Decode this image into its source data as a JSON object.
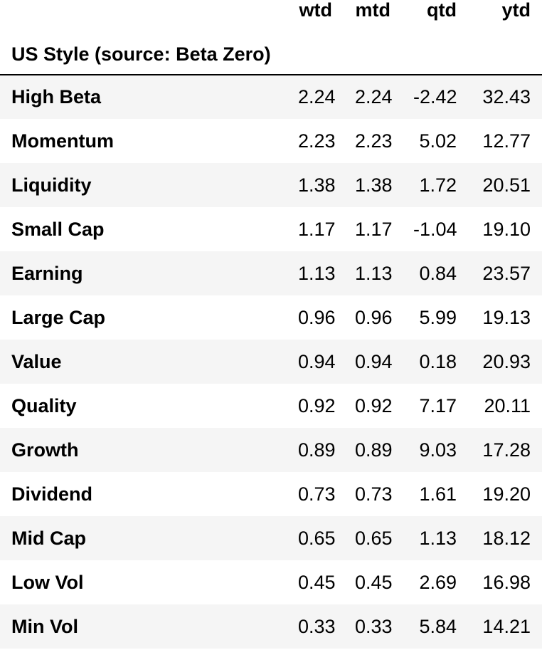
{
  "table": {
    "columns": [
      "wtd",
      "mtd",
      "qtd",
      "ytd"
    ],
    "index_name": "US Style (source: Beta Zero)",
    "rows": [
      {
        "label": "High Beta",
        "values": [
          "2.24",
          "2.24",
          "-2.42",
          "32.43"
        ]
      },
      {
        "label": "Momentum",
        "values": [
          "2.23",
          "2.23",
          "5.02",
          "12.77"
        ]
      },
      {
        "label": "Liquidity",
        "values": [
          "1.38",
          "1.38",
          "1.72",
          "20.51"
        ]
      },
      {
        "label": "Small Cap",
        "values": [
          "1.17",
          "1.17",
          "-1.04",
          "19.10"
        ]
      },
      {
        "label": "Earning",
        "values": [
          "1.13",
          "1.13",
          "0.84",
          "23.57"
        ]
      },
      {
        "label": "Large Cap",
        "values": [
          "0.96",
          "0.96",
          "5.99",
          "19.13"
        ]
      },
      {
        "label": "Value",
        "values": [
          "0.94",
          "0.94",
          "0.18",
          "20.93"
        ]
      },
      {
        "label": "Quality",
        "values": [
          "0.92",
          "0.92",
          "7.17",
          "20.11"
        ]
      },
      {
        "label": "Growth",
        "values": [
          "0.89",
          "0.89",
          "9.03",
          "17.28"
        ]
      },
      {
        "label": "Dividend",
        "values": [
          "0.73",
          "0.73",
          "1.61",
          "19.20"
        ]
      },
      {
        "label": "Mid Cap",
        "values": [
          "0.65",
          "0.65",
          "1.13",
          "18.12"
        ]
      },
      {
        "label": "Low Vol",
        "values": [
          "0.45",
          "0.45",
          "2.69",
          "16.98"
        ]
      },
      {
        "label": "Min Vol",
        "values": [
          "0.33",
          "0.33",
          "5.84",
          "14.21"
        ]
      }
    ]
  },
  "colors": {
    "row_stripe": "#f5f5f5",
    "row_plain": "#ffffff",
    "text": "#000000",
    "header_rule": "#000000"
  }
}
